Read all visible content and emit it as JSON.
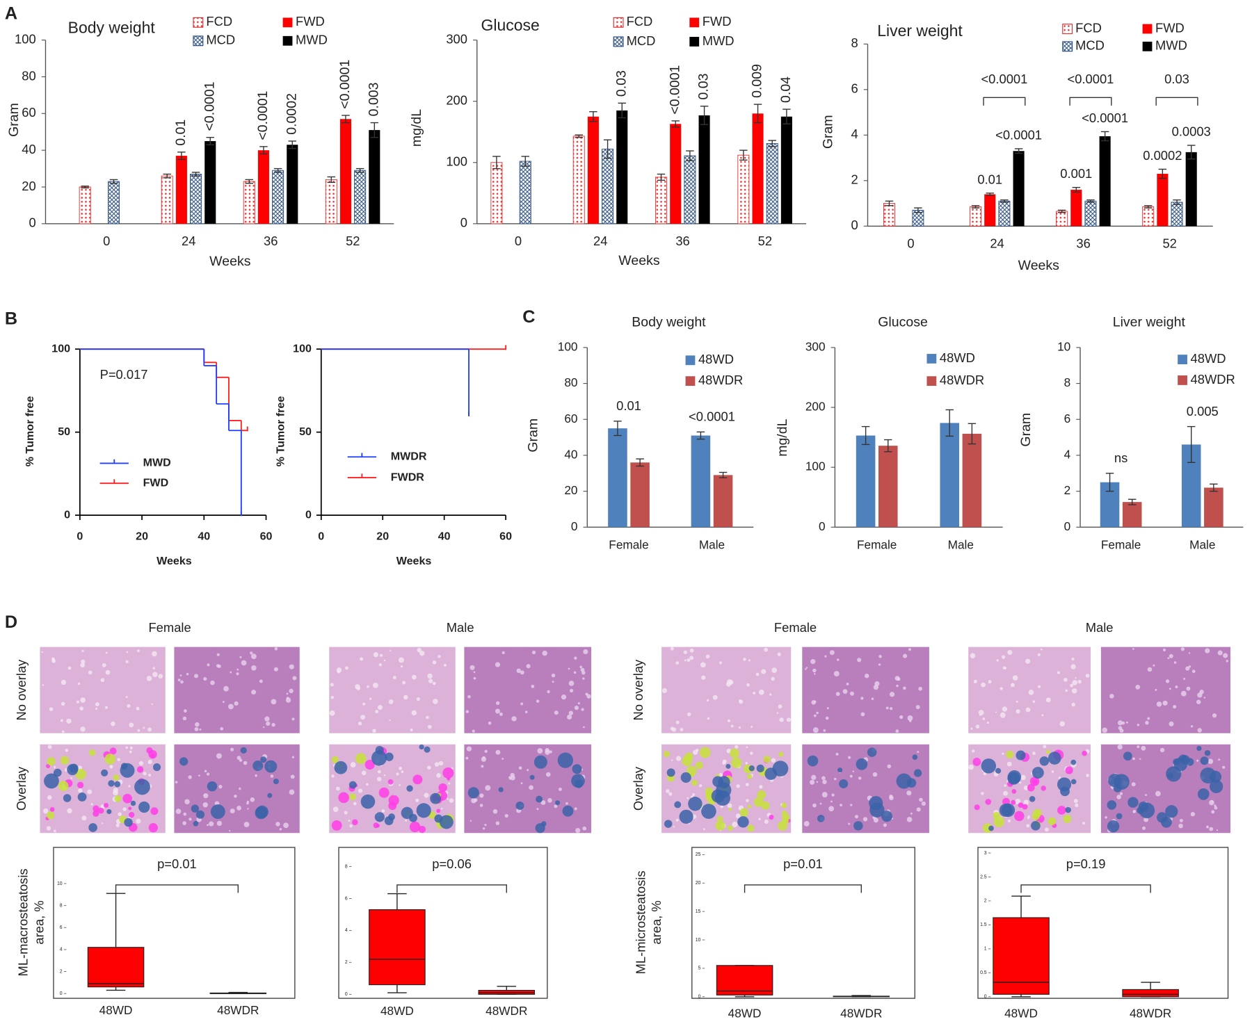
{
  "panels": [
    "A",
    "B",
    "C",
    "D"
  ],
  "chart_data": [
    {
      "type": "bar",
      "title": "Body weight",
      "xlabel": "Weeks",
      "ylabel": "Gram",
      "categories": [
        "0",
        "24",
        "36",
        "52"
      ],
      "ylim": [
        0,
        100
      ],
      "yticks": [
        0,
        20,
        40,
        60,
        80,
        100
      ],
      "series": [
        {
          "name": "FCD",
          "color": "#e83030",
          "pattern": "dots",
          "values": [
            20,
            26,
            23,
            24
          ],
          "errors": [
            0.5,
            1,
            1,
            1.5
          ]
        },
        {
          "name": "FWD",
          "color": "#ff0000",
          "values": [
            null,
            37,
            40,
            57
          ],
          "errors": [
            null,
            2,
            2,
            2
          ],
          "p_labels": [
            null,
            "0.01",
            "<0.0001",
            "<0.0001"
          ]
        },
        {
          "name": "MCD",
          "color": "#2c4f80",
          "pattern": "cross",
          "values": [
            23,
            27,
            29,
            29
          ],
          "errors": [
            1,
            1,
            1,
            1
          ]
        },
        {
          "name": "MWD",
          "color": "#000000",
          "values": [
            null,
            45,
            43,
            51
          ],
          "errors": [
            null,
            2,
            2,
            4
          ],
          "p_labels": [
            null,
            "<0.0001",
            "0.0002",
            "0.003"
          ]
        }
      ]
    },
    {
      "type": "bar",
      "title": "Glucose",
      "xlabel": "Weeks",
      "ylabel": "mg/dL",
      "categories": [
        "0",
        "24",
        "36",
        "52"
      ],
      "ylim": [
        0,
        300
      ],
      "yticks": [
        0,
        100,
        200,
        300
      ],
      "series": [
        {
          "name": "FCD",
          "color": "#e83030",
          "pattern": "dots",
          "values": [
            100,
            143,
            76,
            112
          ],
          "errors": [
            10,
            2,
            5,
            8
          ]
        },
        {
          "name": "FWD",
          "color": "#ff0000",
          "values": [
            null,
            175,
            163,
            180
          ],
          "errors": [
            null,
            8,
            5,
            15
          ],
          "p_labels": [
            null,
            null,
            "<0.0001",
            "0.009"
          ]
        },
        {
          "name": "MCD",
          "color": "#2c4f80",
          "pattern": "cross",
          "values": [
            102,
            122,
            111,
            131
          ],
          "errors": [
            8,
            15,
            8,
            5
          ]
        },
        {
          "name": "MWD",
          "color": "#000000",
          "values": [
            null,
            185,
            177,
            175
          ],
          "errors": [
            null,
            12,
            15,
            12
          ],
          "p_labels": [
            null,
            "0.03",
            "0.03",
            "0.04"
          ]
        }
      ]
    },
    {
      "type": "bar",
      "title": "Liver weight",
      "xlabel": "Weeks",
      "ylabel": "Gram",
      "categories": [
        "0",
        "24",
        "36",
        "52"
      ],
      "ylim": [
        0,
        8
      ],
      "yticks": [
        0,
        2,
        4,
        6,
        8
      ],
      "series": [
        {
          "name": "FCD",
          "color": "#e83030",
          "pattern": "dots",
          "values": [
            1.0,
            0.85,
            0.65,
            0.85
          ],
          "errors": [
            0.1,
            0.05,
            0.05,
            0.05
          ]
        },
        {
          "name": "FWD",
          "color": "#ff0000",
          "values": [
            null,
            1.4,
            1.6,
            2.3
          ],
          "errors": [
            null,
            0.05,
            0.1,
            0.2
          ],
          "p_labels": [
            null,
            "0.01",
            "0.001",
            "0.0002"
          ]
        },
        {
          "name": "MCD",
          "color": "#2c4f80",
          "pattern": "cross",
          "values": [
            0.7,
            1.1,
            1.1,
            1.05
          ],
          "errors": [
            0.1,
            0.05,
            0.05,
            0.1
          ]
        },
        {
          "name": "MWD",
          "color": "#000000",
          "values": [
            null,
            3.3,
            3.95,
            3.25
          ],
          "errors": [
            null,
            0.1,
            0.2,
            0.3
          ],
          "p_labels": [
            null,
            "<0.0001",
            "<0.0001",
            "0.0003"
          ]
        }
      ],
      "brackets": [
        null,
        "<0.0001",
        "<0.0001",
        "0.03"
      ]
    },
    {
      "type": "line",
      "xlabel": "Weeks",
      "ylabel": "% Tumor free",
      "annotation": "P=0.017",
      "xlim": [
        0,
        60
      ],
      "xticks": [
        0,
        20,
        40,
        60
      ],
      "ylim": [
        0,
        100
      ],
      "yticks": [
        0,
        50,
        100
      ],
      "series": [
        {
          "name": "MWD",
          "color": "#1f3fff",
          "x": [
            0,
            40,
            44,
            48,
            52
          ],
          "values": [
            100,
            90,
            67,
            51,
            0
          ]
        },
        {
          "name": "FWD",
          "color": "#ff2020",
          "x": [
            0,
            40,
            44,
            48,
            52,
            54
          ],
          "values": [
            100,
            92,
            83,
            57,
            51,
            51
          ]
        }
      ]
    },
    {
      "type": "line",
      "xlabel": "Weeks",
      "ylabel": "% Tumor free",
      "xlim": [
        0,
        60
      ],
      "xticks": [
        0,
        20,
        40,
        60
      ],
      "ylim": [
        0,
        100
      ],
      "yticks": [
        0,
        50,
        100
      ],
      "series": [
        {
          "name": "MWDR",
          "color": "#1f3fff",
          "x": [
            0,
            48
          ],
          "values": [
            100,
            60
          ]
        },
        {
          "name": "FWDR",
          "color": "#ff2020",
          "x": [
            0,
            48,
            60
          ],
          "values": [
            100,
            100,
            100
          ]
        }
      ]
    },
    {
      "type": "bar",
      "title": "Body weight",
      "ylabel": "Gram",
      "categories": [
        "Female",
        "Male"
      ],
      "ylim": [
        0,
        100
      ],
      "yticks": [
        0,
        20,
        40,
        60,
        80,
        100
      ],
      "series": [
        {
          "name": "48WD",
          "color": "#4f81bd",
          "values": [
            55,
            51
          ],
          "errors": [
            4,
            2
          ]
        },
        {
          "name": "48WDR",
          "color": "#c0504d",
          "values": [
            36,
            29
          ],
          "errors": [
            2,
            1.5
          ]
        }
      ],
      "annotations": [
        "0.01",
        "<0.0001"
      ]
    },
    {
      "type": "bar",
      "title": "Glucose",
      "ylabel": "mg/dL",
      "categories": [
        "Female",
        "Male"
      ],
      "ylim": [
        0,
        300
      ],
      "yticks": [
        0,
        100,
        200,
        300
      ],
      "series": [
        {
          "name": "48WD",
          "color": "#4f81bd",
          "values": [
            153,
            174
          ],
          "errors": [
            15,
            22
          ]
        },
        {
          "name": "48WDR",
          "color": "#c0504d",
          "values": [
            136,
            156
          ],
          "errors": [
            10,
            17
          ]
        }
      ]
    },
    {
      "type": "bar",
      "title": "Liver weight",
      "ylabel": "Gram",
      "categories": [
        "Female",
        "Male"
      ],
      "ylim": [
        0,
        10
      ],
      "yticks": [
        0,
        2,
        4,
        6,
        8,
        10
      ],
      "series": [
        {
          "name": "48WD",
          "color": "#4f81bd",
          "values": [
            2.5,
            4.6
          ],
          "errors": [
            0.5,
            1.0
          ]
        },
        {
          "name": "48WDR",
          "color": "#c0504d",
          "values": [
            1.4,
            2.2
          ],
          "errors": [
            0.15,
            0.2
          ]
        }
      ],
      "annotations": [
        "ns",
        "0.005"
      ]
    },
    {
      "type": "box",
      "ylabel": [
        "ML-macrosteatosis",
        "area, %"
      ],
      "categories": [
        "48WD",
        "48WDR"
      ],
      "color": "#ff0000",
      "ylim": [
        0,
        13
      ],
      "yticks": [
        0,
        2,
        4,
        6,
        8,
        10
      ],
      "boxes": [
        {
          "min": 0.3,
          "q1": 0.6,
          "median": 0.9,
          "q3": 4.2,
          "max": 9.1
        },
        {
          "min": 0,
          "q1": 0,
          "median": 0,
          "q3": 0.05,
          "max": 0.1
        }
      ],
      "p_label": "p=0.01"
    },
    {
      "type": "box",
      "categories": [
        "48WD",
        "48WDR"
      ],
      "color": "#ff0000",
      "ylim": [
        0,
        9
      ],
      "yticks": [
        0,
        2,
        4,
        6,
        8
      ],
      "boxes": [
        {
          "min": 0.1,
          "q1": 0.6,
          "median": 2.2,
          "q3": 5.3,
          "max": 6.3
        },
        {
          "min": 0,
          "q1": 0,
          "median": 0.1,
          "q3": 0.25,
          "max": 0.5
        }
      ],
      "p_label": "p=0.06"
    },
    {
      "type": "box",
      "ylabel": [
        "ML-microsteatosis",
        "area, %"
      ],
      "categories": [
        "48WD",
        "48WDR"
      ],
      "color": "#ff0000",
      "ylim": [
        0,
        26
      ],
      "yticks": [
        0,
        5,
        10,
        15,
        20,
        25
      ],
      "boxes": [
        {
          "min": 0,
          "q1": 0.3,
          "median": 1,
          "q3": 5.5,
          "max": 5.5
        },
        {
          "min": 0,
          "q1": 0,
          "median": 0.05,
          "q3": 0.1,
          "max": 0.2
        }
      ],
      "p_label": "p=0.01"
    },
    {
      "type": "box",
      "categories": [
        "48WD",
        "48WDR"
      ],
      "color": "#ff0000",
      "ylim": [
        0,
        3
      ],
      "yticks": [
        0,
        0.5,
        1,
        1.5,
        2,
        2.5,
        3
      ],
      "boxes": [
        {
          "min": 0,
          "q1": 0.05,
          "median": 0.3,
          "q3": 1.65,
          "max": 2.1
        },
        {
          "min": 0,
          "q1": 0,
          "median": 0.05,
          "q3": 0.15,
          "max": 0.3
        }
      ],
      "p_label": "p=0.19"
    }
  ],
  "histology": {
    "columns": [
      "Female",
      "Male",
      "Female",
      "Male"
    ],
    "rows": [
      "No overlay",
      "Overlay"
    ]
  }
}
